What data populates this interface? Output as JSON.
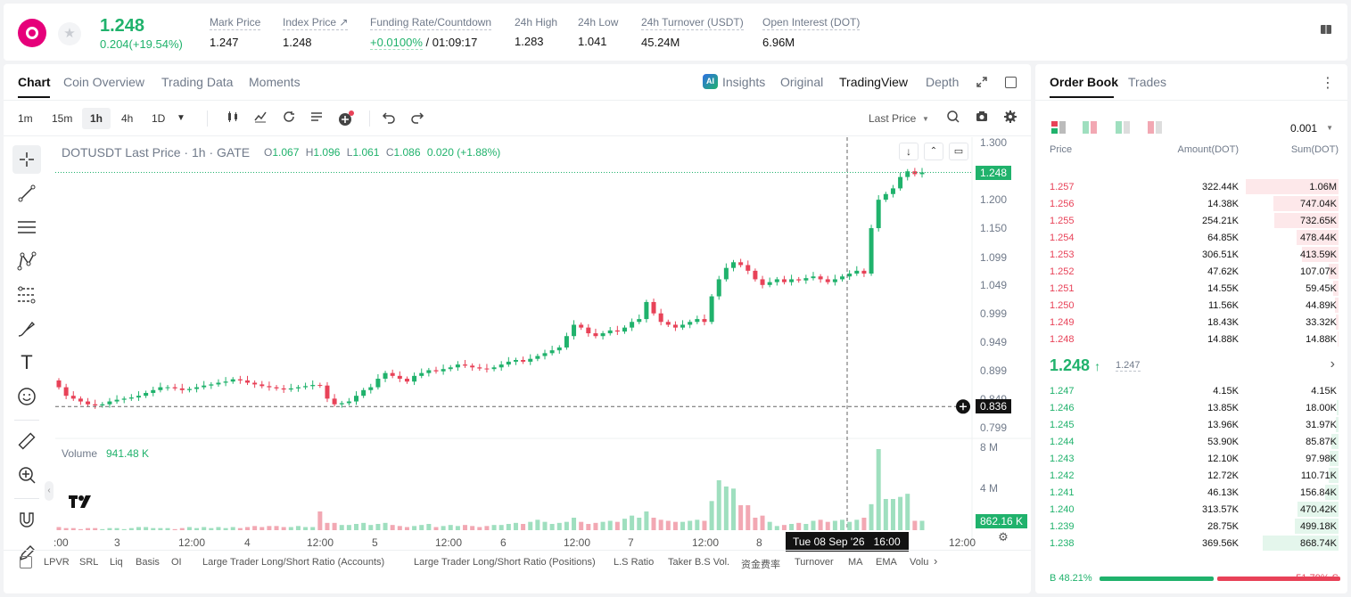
{
  "header": {
    "last_price": "1.248",
    "change": "0.204(+19.54%)",
    "stats": [
      {
        "label": "Mark Price",
        "value": "1.247"
      },
      {
        "label": "Index Price ↗",
        "value": "1.248"
      },
      {
        "label": "Funding Rate/Countdown",
        "value": "+0.0100%",
        "value2": "/ 01:09:17"
      },
      {
        "label": "24h High",
        "value": "1.283"
      },
      {
        "label": "24h Low",
        "value": "1.041"
      },
      {
        "label": "24h Turnover (USDT)",
        "value": "45.24M"
      },
      {
        "label": "Open Interest (DOT)",
        "value": "6.96M"
      }
    ]
  },
  "chart_panel": {
    "tabs": [
      "Chart",
      "Coin Overview",
      "Trading Data",
      "Moments"
    ],
    "views": [
      "Insights",
      "Original",
      "TradingView",
      "Depth"
    ],
    "timeframes": [
      "1m",
      "15m",
      "1h",
      "4h",
      "1D"
    ],
    "price_type": "Last Price",
    "title": "DOTUSDT Last Price · 1h · GATE",
    "ohlc": {
      "o_label": "O",
      "o": "1.067",
      "h_label": "H",
      "h": "1.096",
      "l_label": "L",
      "l": "1.061",
      "c_label": "C",
      "c": "1.086",
      "chg": "0.020 (+1.88%)"
    },
    "volume_label": "Volume",
    "volume_value": "941.48 K",
    "price_ticks": [
      "1.300",
      "1.248",
      "1.200",
      "1.150",
      "1.099",
      "1.049",
      "0.999",
      "0.949",
      "0.899",
      "0.849",
      "0.836",
      "0.799"
    ],
    "volume_ticks": [
      "8 M",
      "4 M",
      "862.16 K"
    ],
    "time_ticks": [
      ":00",
      "3",
      "12:00",
      "4",
      "12:00",
      "5",
      "12:00",
      "6",
      "12:00",
      "7",
      "12:00",
      "8",
      "12:00"
    ],
    "crosshair_time": "Tue 08 Sep '26",
    "crosshair_hour": "16:00",
    "crosshair_price": "0.836",
    "indicators": [
      "LPVR",
      "SRL",
      "Liq",
      "Basis",
      "OI",
      "Large Trader Long/Short Ratio (Accounts)",
      "Large Trader Long/Short Ratio (Positions)",
      "L.S Ratio",
      "Taker B.S Vol.",
      "资金费率",
      "Turnover",
      "MA",
      "EMA",
      "Volu"
    ]
  },
  "chart_data": {
    "type": "candlestick",
    "title": "DOTUSDT Last Price · 1h · GATE",
    "ylim": [
      0.78,
      1.31
    ],
    "series": [
      {
        "name": "Volume",
        "values_unit": "M"
      }
    ],
    "close": [
      0.87,
      0.855,
      0.85,
      0.845,
      0.84,
      0.838,
      0.84,
      0.845,
      0.848,
      0.85,
      0.852,
      0.855,
      0.86,
      0.865,
      0.87,
      0.87,
      0.868,
      0.865,
      0.867,
      0.87,
      0.873,
      0.875,
      0.878,
      0.88,
      0.884,
      0.882,
      0.878,
      0.875,
      0.872,
      0.87,
      0.868,
      0.866,
      0.868,
      0.87,
      0.872,
      0.874,
      0.873,
      0.85,
      0.84,
      0.842,
      0.845,
      0.855,
      0.865,
      0.87,
      0.885,
      0.895,
      0.89,
      0.885,
      0.88,
      0.89,
      0.895,
      0.9,
      0.898,
      0.902,
      0.905,
      0.91,
      0.908,
      0.905,
      0.903,
      0.902,
      0.905,
      0.91,
      0.915,
      0.918,
      0.915,
      0.92,
      0.925,
      0.93,
      0.935,
      0.94,
      0.96,
      0.98,
      0.975,
      0.965,
      0.96,
      0.965,
      0.97,
      0.968,
      0.975,
      0.985,
      0.99,
      1.02,
      1.0,
      0.985,
      0.98,
      0.975,
      0.98,
      0.985,
      0.99,
      0.985,
      1.03,
      1.06,
      1.08,
      1.09,
      1.085,
      1.075,
      1.06,
      1.05,
      1.055,
      1.06,
      1.055,
      1.06,
      1.058,
      1.062,
      1.065,
      1.06,
      1.055,
      1.06,
      1.065,
      1.07,
      1.075,
      1.07,
      1.15,
      1.2,
      1.21,
      1.22,
      1.24,
      1.25,
      1.245,
      1.248
    ],
    "volume_m": [
      0.3,
      0.2,
      0.2,
      0.1,
      0.2,
      0.2,
      0.1,
      0.2,
      0.2,
      0.1,
      0.2,
      0.3,
      0.3,
      0.2,
      0.2,
      0.2,
      0.1,
      0.2,
      0.3,
      0.2,
      0.3,
      0.2,
      0.3,
      0.2,
      0.3,
      0.2,
      0.3,
      0.4,
      0.3,
      0.4,
      0.4,
      0.3,
      0.3,
      0.4,
      0.3,
      0.3,
      1.8,
      0.7,
      0.7,
      0.5,
      0.5,
      0.6,
      0.7,
      0.5,
      0.6,
      0.7,
      0.5,
      0.4,
      0.3,
      0.4,
      0.5,
      0.6,
      0.3,
      0.4,
      0.5,
      0.4,
      0.5,
      0.4,
      0.3,
      0.4,
      0.5,
      0.5,
      0.6,
      0.7,
      0.6,
      0.8,
      1.0,
      0.8,
      0.6,
      0.7,
      0.8,
      1.2,
      0.8,
      0.6,
      0.7,
      0.8,
      0.9,
      0.8,
      1.1,
      1.4,
      1.2,
      1.8,
      1.2,
      1.0,
      0.9,
      0.8,
      0.8,
      0.9,
      1.0,
      0.9,
      2.8,
      4.8,
      4.2,
      4.0,
      2.4,
      2.4,
      1.2,
      1.4,
      0.8,
      0.4,
      0.5,
      0.6,
      0.7,
      0.6,
      0.9,
      1.0,
      0.8,
      0.9,
      1.0,
      0.8,
      1.0,
      1.2,
      2.5,
      7.8,
      3.0,
      3.0,
      3.2,
      3.5,
      0.9,
      0.9
    ]
  },
  "order_book": {
    "tabs": [
      "Order Book",
      "Trades"
    ],
    "precision": "0.001",
    "headers": [
      "Price",
      "Amount(DOT)",
      "Sum(DOT)"
    ],
    "asks": [
      {
        "price": "1.257",
        "amount": "322.44K",
        "sum": "1.06M",
        "depth": 1.0
      },
      {
        "price": "1.256",
        "amount": "14.38K",
        "sum": "747.04K",
        "depth": 0.705
      },
      {
        "price": "1.255",
        "amount": "254.21K",
        "sum": "732.65K",
        "depth": 0.691
      },
      {
        "price": "1.254",
        "amount": "64.85K",
        "sum": "478.44K",
        "depth": 0.451
      },
      {
        "price": "1.253",
        "amount": "306.51K",
        "sum": "413.59K",
        "depth": 0.39
      },
      {
        "price": "1.252",
        "amount": "47.62K",
        "sum": "107.07K",
        "depth": 0.101
      },
      {
        "price": "1.251",
        "amount": "14.55K",
        "sum": "59.45K",
        "depth": 0.056
      },
      {
        "price": "1.250",
        "amount": "11.56K",
        "sum": "44.89K",
        "depth": 0.042
      },
      {
        "price": "1.249",
        "amount": "18.43K",
        "sum": "33.32K",
        "depth": 0.031
      },
      {
        "price": "1.248",
        "amount": "14.88K",
        "sum": "14.88K",
        "depth": 0.014
      }
    ],
    "mid_price": "1.248",
    "mark_price": "1.247",
    "bids": [
      {
        "price": "1.247",
        "amount": "4.15K",
        "sum": "4.15K",
        "depth": 0.004
      },
      {
        "price": "1.246",
        "amount": "13.85K",
        "sum": "18.00K",
        "depth": 0.017
      },
      {
        "price": "1.245",
        "amount": "13.96K",
        "sum": "31.97K",
        "depth": 0.03
      },
      {
        "price": "1.244",
        "amount": "53.90K",
        "sum": "85.87K",
        "depth": 0.081
      },
      {
        "price": "1.243",
        "amount": "12.10K",
        "sum": "97.98K",
        "depth": 0.092
      },
      {
        "price": "1.242",
        "amount": "12.72K",
        "sum": "110.71K",
        "depth": 0.104
      },
      {
        "price": "1.241",
        "amount": "46.13K",
        "sum": "156.84K",
        "depth": 0.148
      },
      {
        "price": "1.240",
        "amount": "313.57K",
        "sum": "470.42K",
        "depth": 0.443
      },
      {
        "price": "1.239",
        "amount": "28.75K",
        "sum": "499.18K",
        "depth": 0.47
      },
      {
        "price": "1.238",
        "amount": "369.56K",
        "sum": "868.74K",
        "depth": 0.818
      }
    ],
    "buy_ratio": "B 48.21%",
    "sell_ratio": "51.79% S",
    "buy_fraction": 0.4821
  },
  "colors": {
    "up": "#20b26c",
    "down": "#e84258",
    "up_volume": "#9fdfbf",
    "down_volume": "#f2a8b3"
  }
}
